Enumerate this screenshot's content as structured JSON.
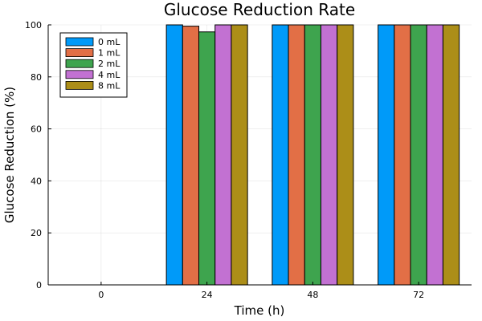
{
  "chart_data": {
    "type": "bar",
    "title": "Glucose Reduction Rate",
    "xlabel": "Time (h)",
    "ylabel": "Glucose Reduction (%)",
    "categories": [
      "0",
      "24",
      "48",
      "72"
    ],
    "ylim": [
      0,
      100
    ],
    "yticks": [
      0,
      20,
      40,
      60,
      80,
      100
    ],
    "grid": true,
    "legend_position": "top-left",
    "series": [
      {
        "name": "0 mL",
        "color": "#009af9",
        "values": [
          0,
          100,
          100,
          100
        ]
      },
      {
        "name": "1 mL",
        "color": "#e26f46",
        "values": [
          0,
          99.5,
          100,
          100
        ]
      },
      {
        "name": "2 mL",
        "color": "#3ea44e",
        "values": [
          0,
          97.3,
          100,
          100
        ]
      },
      {
        "name": "4 mL",
        "color": "#c271d2",
        "values": [
          0,
          100,
          100,
          100
        ]
      },
      {
        "name": "8 mL",
        "color": "#ac8e18",
        "values": [
          0,
          100,
          100,
          100
        ]
      }
    ]
  }
}
